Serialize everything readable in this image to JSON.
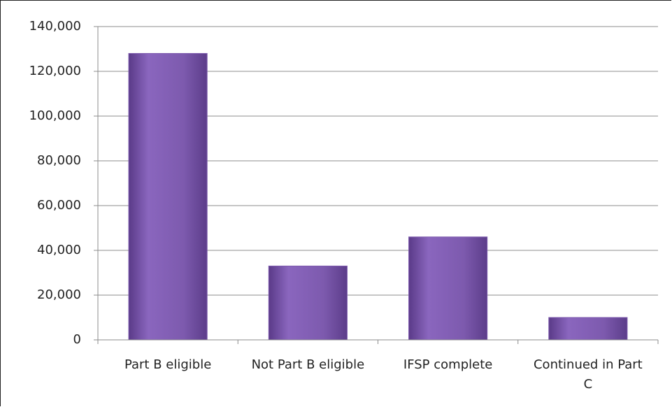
{
  "chart_data": {
    "type": "bar",
    "categories": [
      "Part B eligible",
      "Not Part B eligible",
      "IFSP complete",
      "Continued in Part C"
    ],
    "values": [
      128000,
      33000,
      46000,
      10000
    ],
    "color": "#7d5aae",
    "ylim": [
      0,
      140000
    ],
    "yticks": [
      0,
      {
        "value": 20000,
        "label": "20,000"
      },
      {
        "value": 40000,
        "label": "40,000"
      },
      {
        "value": 60000,
        "label": "60,000"
      },
      {
        "value": 80000,
        "label": "80,000"
      },
      {
        "value": 100000,
        "label": "100,000"
      },
      {
        "value": 120000,
        "label": "120,000"
      },
      {
        "value": 140000,
        "label": "140,000"
      }
    ],
    "grid": true
  }
}
